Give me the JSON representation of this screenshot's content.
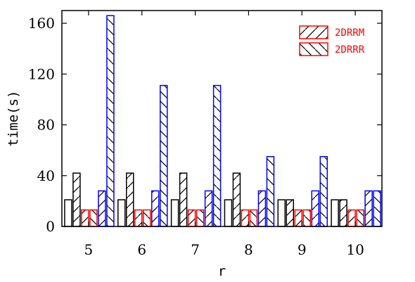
{
  "chart_data": {
    "type": "bar",
    "categories": [
      "5",
      "6",
      "7",
      "8",
      "9",
      "10"
    ],
    "xlabel": "r",
    "ylabel": "time(s)",
    "ylim": [
      0,
      170
    ],
    "yticks": [
      0,
      40,
      80,
      120,
      160
    ],
    "grid": false,
    "legend_position": "top-right",
    "series": [
      {
        "values": [
          21,
          21,
          21,
          21,
          21,
          21
        ],
        "color": "#000000",
        "hatch": "none"
      },
      {
        "values": [
          42,
          42,
          42,
          42,
          21,
          21
        ],
        "color": "#000000",
        "hatch": "forward"
      },
      {
        "name": "2DRRM",
        "values": [
          13,
          13,
          13,
          13,
          13,
          13
        ],
        "color": "#ff0000",
        "hatch": "forward"
      },
      {
        "name": "2DRRR",
        "values": [
          13,
          13,
          13,
          13,
          13,
          13
        ],
        "color": "#ff0000",
        "hatch": "back"
      },
      {
        "values": [
          28,
          28,
          28,
          28,
          28,
          28
        ],
        "color": "#0000ff",
        "hatch": "forward"
      },
      {
        "values": [
          166,
          111,
          111,
          55,
          55,
          28
        ],
        "color": "#0000ff",
        "hatch": "back"
      }
    ]
  }
}
